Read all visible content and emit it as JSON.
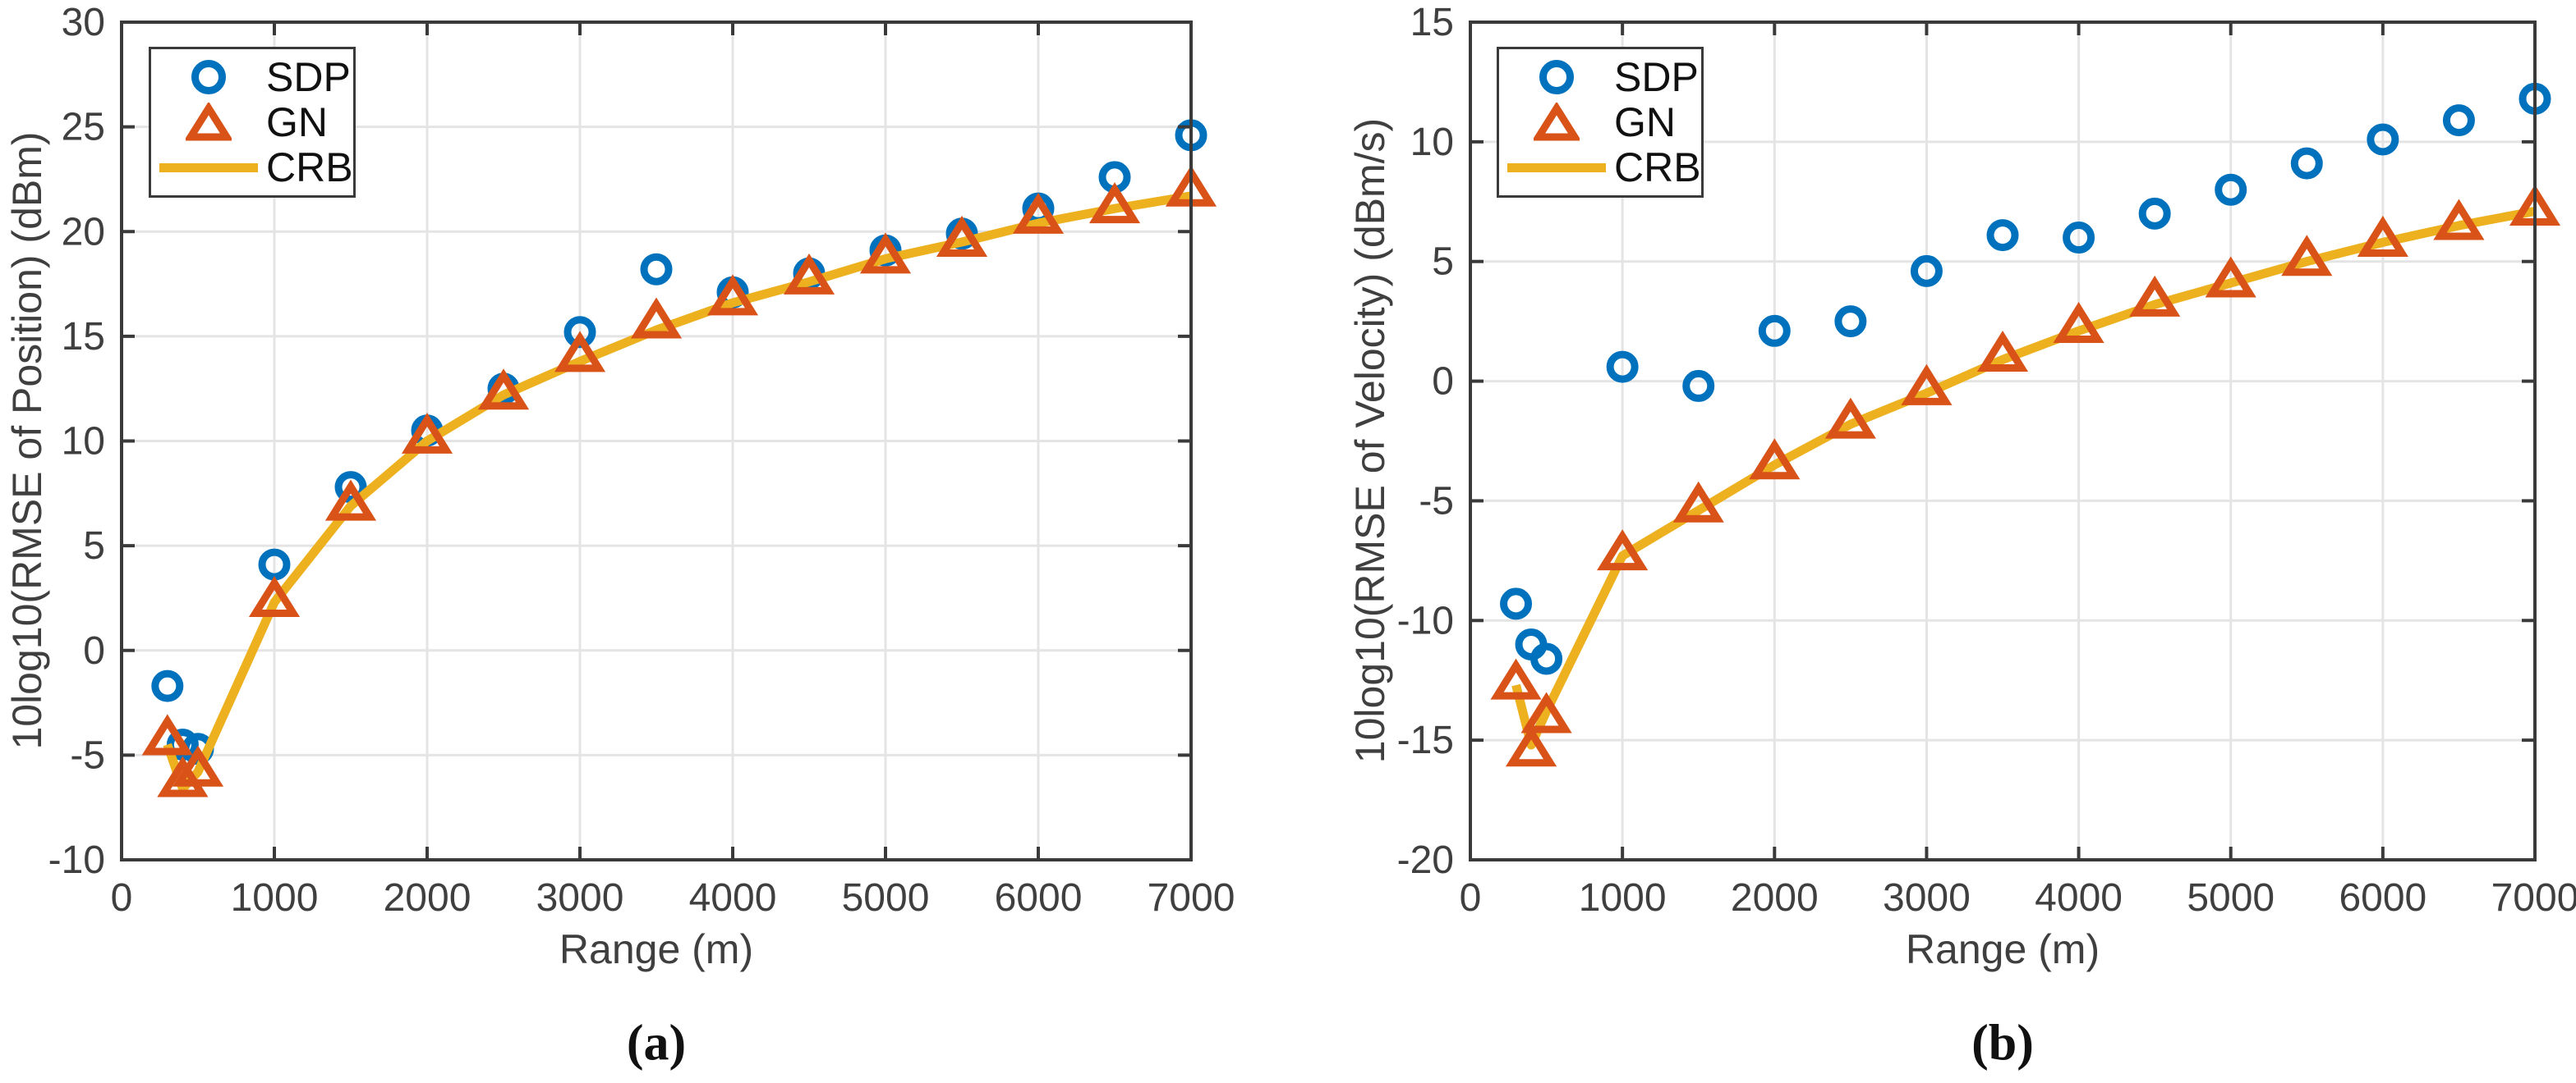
{
  "figure": {
    "captions": {
      "a": "(a)",
      "b": "(b)"
    }
  },
  "colors": {
    "sdp_blue": "#0072BD",
    "gn_orange": "#D95319",
    "crb_yellow": "#EDB120",
    "axis": "#3a3a3a",
    "grid": "#e4e4e4",
    "tick_text": "#3f3f3f"
  },
  "chart_data": [
    {
      "type": "scatter",
      "caption": "(a)",
      "xlabel": "Range (m)",
      "ylabel": "10log10(RMSE of Position) (dBm)",
      "xlim": [
        0,
        7000
      ],
      "ylim": [
        -10,
        30
      ],
      "xticks": [
        0,
        1000,
        2000,
        3000,
        4000,
        5000,
        6000,
        7000
      ],
      "yticks": [
        -10,
        -5,
        0,
        5,
        10,
        15,
        20,
        25,
        30
      ],
      "grid": true,
      "legend_position": "top-left",
      "x": [
        300,
        400,
        500,
        1000,
        1500,
        2000,
        2500,
        3000,
        3500,
        4000,
        4500,
        5000,
        5500,
        6000,
        6500,
        7000
      ],
      "series": [
        {
          "name": "SDP",
          "marker": "circle",
          "color": "#0072BD",
          "values": [
            -1.7,
            -4.5,
            -4.7,
            4.1,
            7.8,
            10.5,
            12.5,
            15.2,
            18.2,
            17.1,
            18.0,
            19.1,
            19.9,
            21.1,
            22.6,
            24.6
          ]
        },
        {
          "name": "GN",
          "marker": "triangle-up",
          "color": "#D95319",
          "values": [
            -4.2,
            -6.2,
            -5.7,
            2.4,
            7.0,
            10.2,
            12.3,
            14.1,
            15.7,
            16.8,
            17.8,
            18.8,
            19.6,
            20.7,
            21.2,
            22.0
          ]
        },
        {
          "name": "CRB",
          "marker": "line",
          "color": "#EDB120",
          "values": [
            -4.5,
            -6.6,
            -5.8,
            2.3,
            6.9,
            10.0,
            12.2,
            13.8,
            15.3,
            16.6,
            17.6,
            18.7,
            19.5,
            20.4,
            21.1,
            21.7
          ]
        }
      ]
    },
    {
      "type": "scatter",
      "caption": "(b)",
      "xlabel": "Range (m)",
      "ylabel": "10log10(RMSE of Velocity) (dBm/s)",
      "xlim": [
        0,
        7000
      ],
      "ylim": [
        -20,
        15
      ],
      "xticks": [
        0,
        1000,
        2000,
        3000,
        4000,
        5000,
        6000,
        7000
      ],
      "yticks": [
        -20,
        -15,
        -10,
        -5,
        0,
        5,
        10,
        15
      ],
      "grid": true,
      "legend_position": "top-left",
      "x": [
        300,
        400,
        500,
        1000,
        1500,
        2000,
        2500,
        3000,
        3500,
        4000,
        4500,
        5000,
        5500,
        6000,
        6500,
        7000
      ],
      "series": [
        {
          "name": "SDP",
          "marker": "circle",
          "color": "#0072BD",
          "values": [
            -9.3,
            -11.0,
            -11.6,
            0.6,
            -0.2,
            2.1,
            2.5,
            4.6,
            6.1,
            6.0,
            7.0,
            8.0,
            9.1,
            10.1,
            10.9,
            11.8
          ]
        },
        {
          "name": "GN",
          "marker": "triangle-up",
          "color": "#D95319",
          "values": [
            -12.6,
            -15.4,
            -14.0,
            -7.2,
            -5.2,
            -3.4,
            -1.7,
            -0.3,
            1.1,
            2.3,
            3.4,
            4.2,
            5.1,
            5.9,
            6.6,
            7.2
          ]
        },
        {
          "name": "CRB",
          "marker": "line",
          "color": "#EDB120",
          "values": [
            -12.7,
            -15.2,
            -13.8,
            -7.3,
            -5.4,
            -3.5,
            -1.8,
            -0.5,
            0.9,
            2.1,
            3.2,
            4.1,
            5.0,
            5.8,
            6.5,
            7.1
          ]
        }
      ]
    }
  ]
}
